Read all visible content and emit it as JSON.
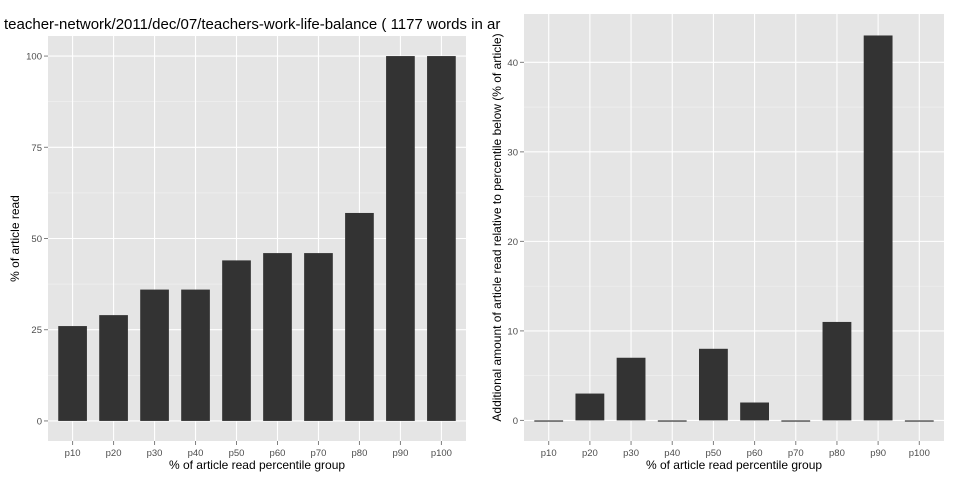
{
  "chart_data": [
    {
      "type": "bar",
      "title": "teacher-network/2011/dec/07/teachers-work-life-balance ( 1177 words in ar",
      "xlabel": "% of article read percentile group",
      "ylabel": "% of article read",
      "categories": [
        "p10",
        "p20",
        "p30",
        "p40",
        "p50",
        "p60",
        "p70",
        "p80",
        "p90",
        "p100"
      ],
      "values": [
        26,
        29,
        36,
        36,
        44,
        46,
        46,
        57,
        100,
        100
      ],
      "yticks": [
        0,
        25,
        50,
        75,
        100
      ],
      "ylim": [
        -5.5,
        105.5
      ],
      "grid": true,
      "colors": {
        "panel": "#e5e5e5",
        "grid": "#ffffff",
        "bar": "#333333",
        "tick_text": "#4d4d4d"
      }
    },
    {
      "type": "bar",
      "title": "",
      "xlabel": "% of article read percentile group",
      "ylabel": "Additional amount of article read relative to percentile below (% of article)",
      "categories": [
        "p10",
        "p20",
        "p30",
        "p40",
        "p50",
        "p60",
        "p70",
        "p80",
        "p90",
        "p100"
      ],
      "values": [
        0,
        3,
        7,
        0,
        8,
        2,
        0,
        11,
        43,
        0
      ],
      "yticks": [
        0,
        10,
        20,
        30,
        40
      ],
      "ylim": [
        -2.3,
        45.4
      ],
      "grid": true,
      "colors": {
        "panel": "#e5e5e5",
        "grid": "#ffffff",
        "bar": "#333333",
        "tick_text": "#4d4d4d"
      }
    }
  ]
}
